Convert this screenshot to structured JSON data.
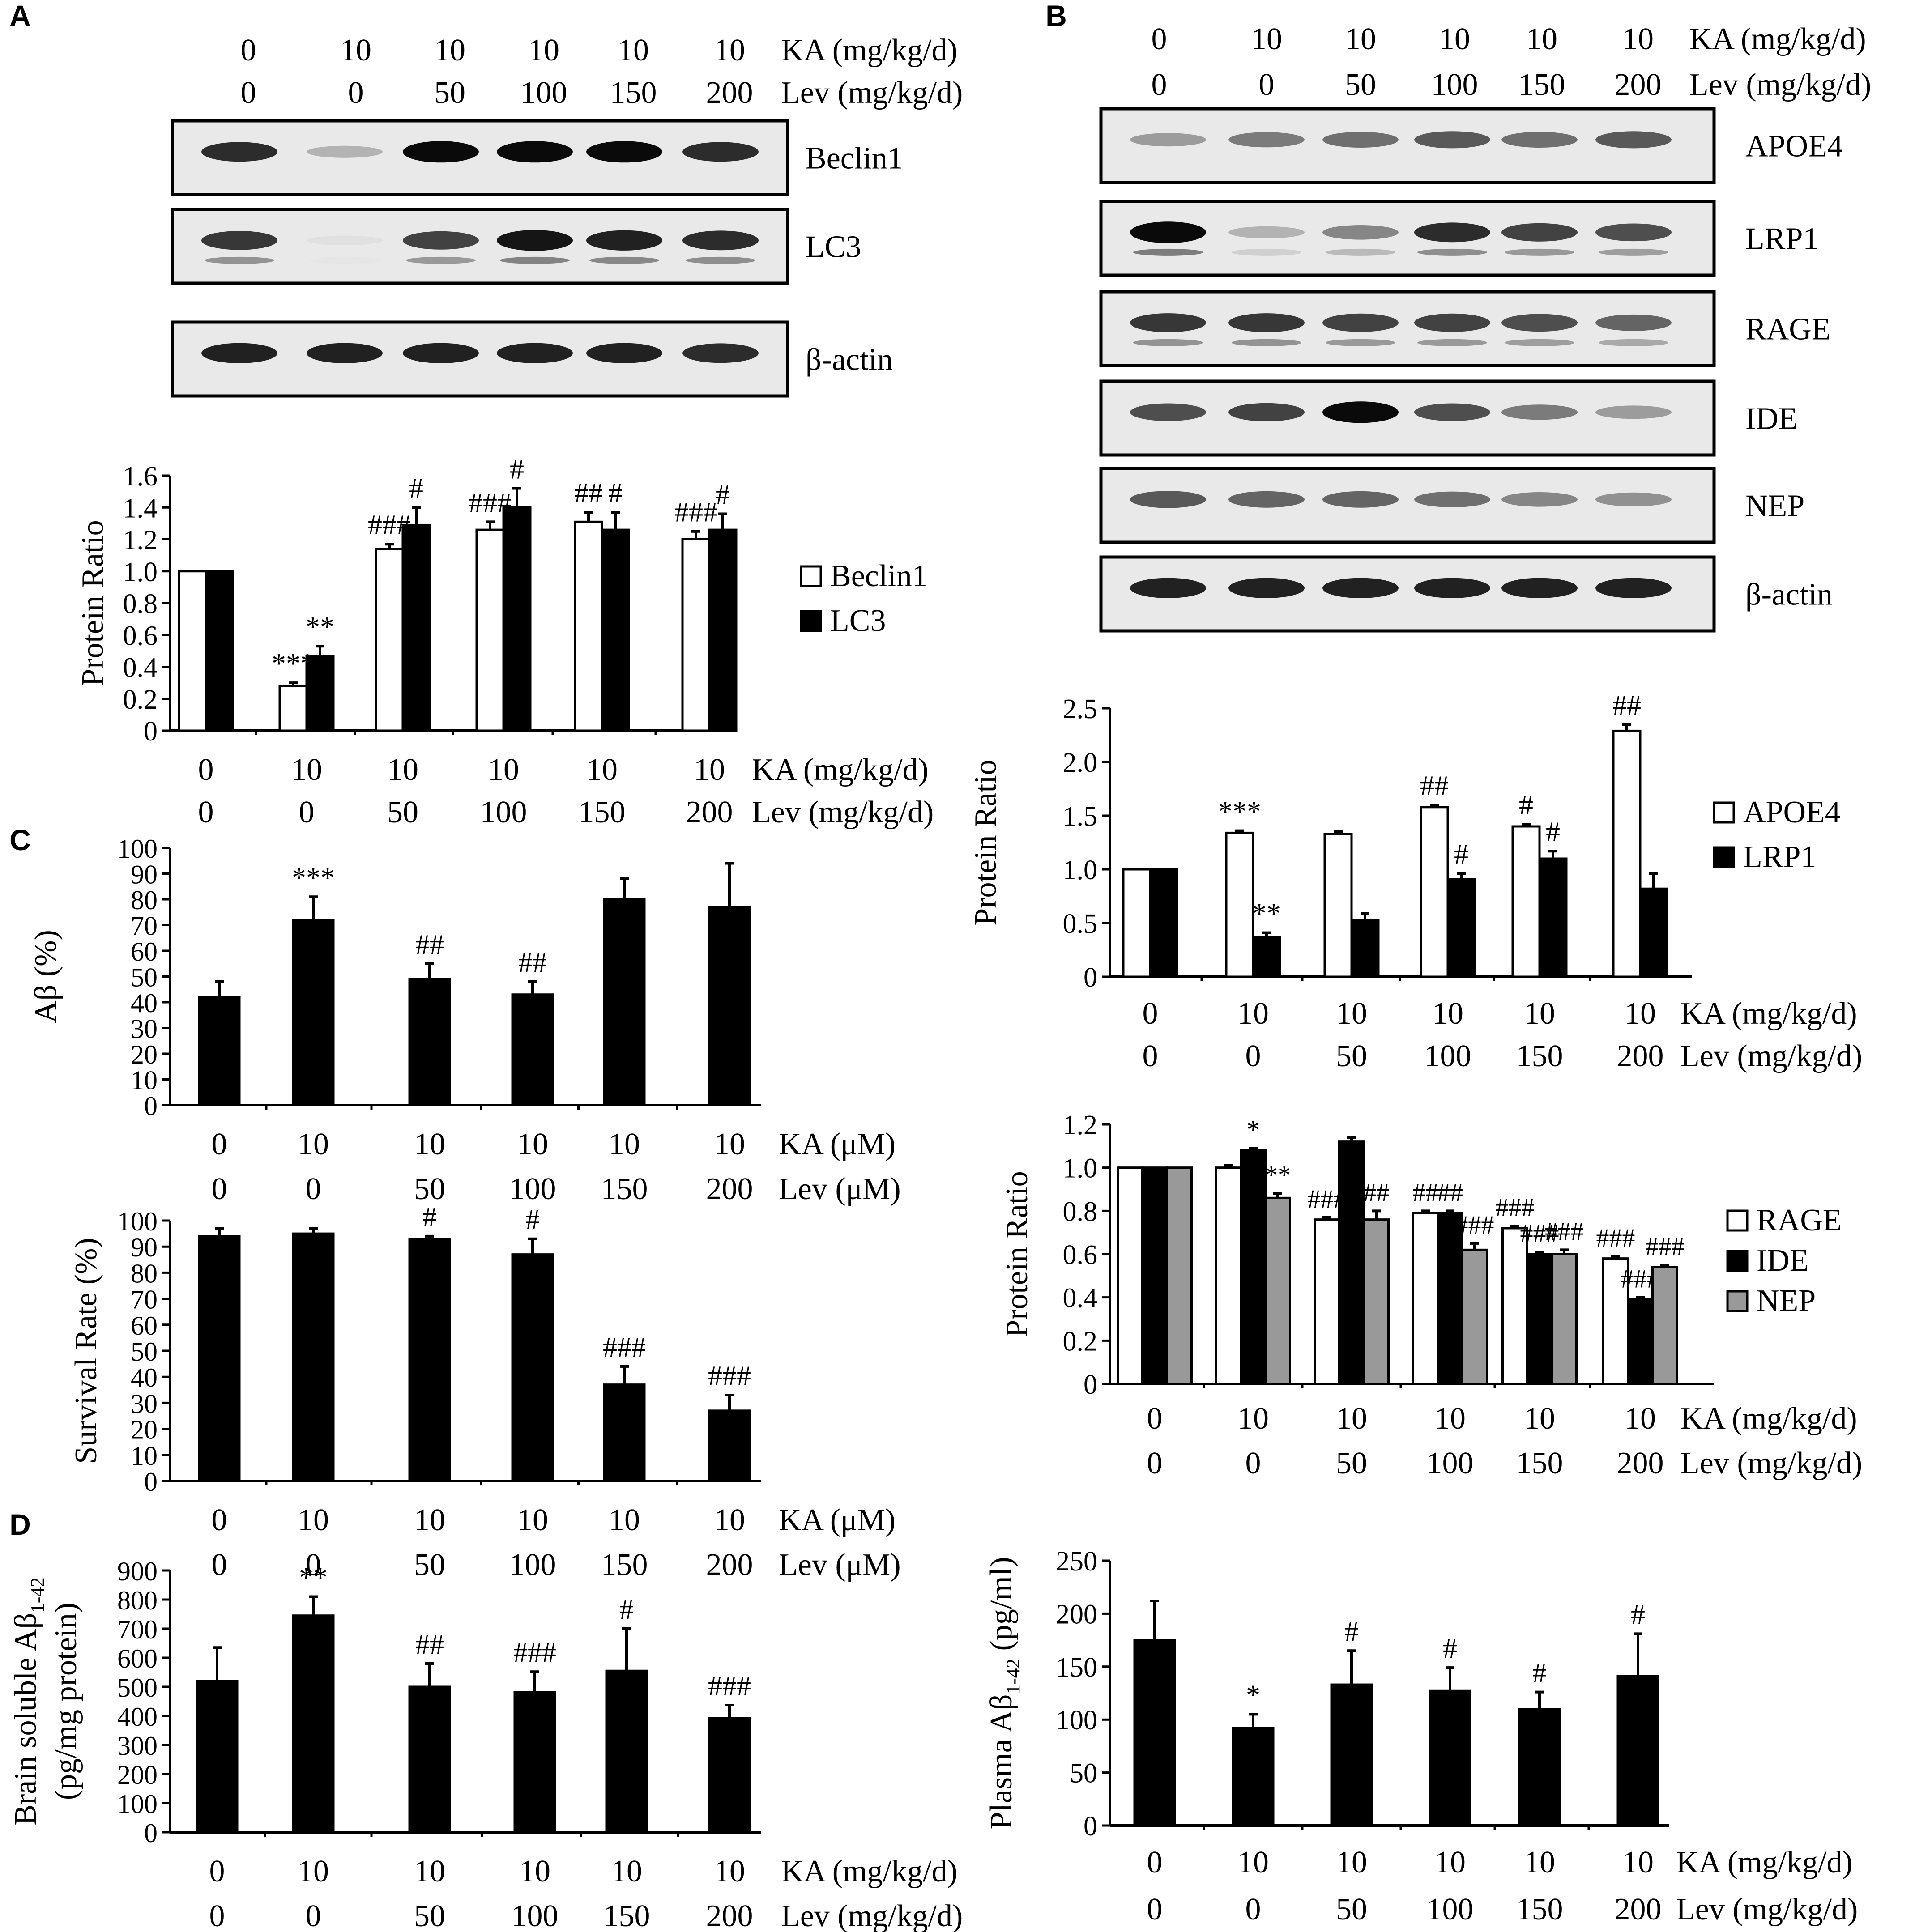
{
  "figure": {
    "panel_letters": [
      "A",
      "B",
      "C",
      "D"
    ],
    "treatment_labels": {
      "ka_mgkg": "KA (mg/kg/d)",
      "lev_mgkg": "Lev (mg/kg/d)",
      "ka_um": "KA (μM)",
      "lev_um": "Lev (μM)",
      "ka_values": [
        "0",
        "10",
        "10",
        "10",
        "10",
        "10"
      ],
      "lev_values": [
        "0",
        "0",
        "50",
        "100",
        "150",
        "200"
      ]
    }
  },
  "blots": [
    {
      "panel": "A",
      "rows": [
        {
          "label": "Beclin1",
          "intensities": [
            0.85,
            0.25,
            1.0,
            1.0,
            1.0,
            0.85
          ]
        },
        {
          "label": "LC3",
          "intensities": [
            0.8,
            0.05,
            0.75,
            0.95,
            0.9,
            0.85
          ],
          "lower_band": true
        },
        {
          "label": "β-actin",
          "intensities": [
            0.9,
            0.9,
            0.9,
            0.9,
            0.9,
            0.85
          ]
        }
      ]
    },
    {
      "panel": "B",
      "rows": [
        {
          "label": "APOE4",
          "intensities": [
            0.35,
            0.5,
            0.55,
            0.65,
            0.55,
            0.65
          ]
        },
        {
          "label": "LRP1",
          "intensities": [
            1.0,
            0.25,
            0.45,
            0.85,
            0.75,
            0.7
          ],
          "lower_band": true
        },
        {
          "label": "RAGE",
          "intensities": [
            0.8,
            0.8,
            0.75,
            0.75,
            0.7,
            0.6
          ],
          "lower_band": true
        },
        {
          "label": "IDE",
          "intensities": [
            0.7,
            0.75,
            1.0,
            0.7,
            0.5,
            0.35
          ]
        },
        {
          "label": "NEP",
          "intensities": [
            0.65,
            0.6,
            0.6,
            0.55,
            0.45,
            0.4
          ]
        },
        {
          "label": "β-actin",
          "intensities": [
            0.9,
            0.9,
            0.9,
            0.9,
            0.9,
            0.9
          ]
        }
      ]
    }
  ],
  "chart_data": [
    {
      "id": "A-bar",
      "type": "bar",
      "panel": "A",
      "ylabel": "Protein Ratio",
      "ylim": [
        0,
        1.6
      ],
      "yticks": [
        "0",
        "0.2",
        "0.4",
        "0.6",
        "0.8",
        "1.0",
        "1.2",
        "1.4",
        "1.6"
      ],
      "xlabel_rows": [
        {
          "values": [
            "0",
            "10",
            "10",
            "10",
            "10",
            "10"
          ],
          "label": "KA (mg/kg/d)"
        },
        {
          "values": [
            "0",
            "0",
            "50",
            "100",
            "150",
            "200"
          ],
          "label": "Lev (mg/kg/d)"
        }
      ],
      "legend_position": "right",
      "series": [
        {
          "name": "Beclin1",
          "fill": "#ffffff",
          "values": [
            1.0,
            0.28,
            1.14,
            1.26,
            1.31,
            1.2
          ],
          "errors": [
            0,
            0.02,
            0.03,
            0.05,
            0.06,
            0.05
          ],
          "annotations": [
            "",
            "***",
            "###",
            "###",
            "##",
            "###"
          ]
        },
        {
          "name": "LC3",
          "fill": "#000000",
          "values": [
            1.0,
            0.47,
            1.29,
            1.4,
            1.26,
            1.26
          ],
          "errors": [
            0,
            0.06,
            0.11,
            0.12,
            0.11,
            0.1
          ],
          "annotations": [
            "",
            "**",
            "#",
            "#",
            "#",
            "#"
          ]
        }
      ]
    },
    {
      "id": "B-apoe",
      "type": "bar",
      "panel": "B",
      "ylabel": "Protein Ratio",
      "ylim": [
        0,
        2.5
      ],
      "yticks": [
        "0",
        "0.5",
        "1.0",
        "1.5",
        "2.0",
        "2.5"
      ],
      "xlabel_rows": [
        {
          "values": [
            "0",
            "10",
            "10",
            "10",
            "10",
            "10"
          ],
          "label": "KA (mg/kg/d)"
        },
        {
          "values": [
            "0",
            "0",
            "50",
            "100",
            "150",
            "200"
          ],
          "label": "Lev (mg/kg/d)"
        }
      ],
      "legend_position": "right",
      "series": [
        {
          "name": "APOE4",
          "fill": "#ffffff",
          "values": [
            1.0,
            1.34,
            1.33,
            1.58,
            1.4,
            2.29
          ],
          "errors": [
            0,
            0.02,
            0.02,
            0.02,
            0.02,
            0.06
          ],
          "annotations": [
            "",
            "***",
            "",
            "##",
            "#",
            "##"
          ]
        },
        {
          "name": "LRP1",
          "fill": "#000000",
          "values": [
            1.0,
            0.37,
            0.53,
            0.91,
            1.1,
            0.82
          ],
          "errors": [
            0,
            0.04,
            0.06,
            0.05,
            0.07,
            0.14
          ],
          "annotations": [
            "",
            "**",
            "",
            "#",
            "#",
            ""
          ]
        }
      ]
    },
    {
      "id": "B-rage",
      "type": "bar",
      "panel": "B",
      "ylabel": "Protein Ratio",
      "ylim": [
        0,
        1.2
      ],
      "yticks": [
        "0",
        "0.2",
        "0.4",
        "0.6",
        "0.8",
        "1.0",
        "1.2"
      ],
      "xlabel_rows": [
        {
          "values": [
            "0",
            "10",
            "10",
            "10",
            "10",
            "10"
          ],
          "label": "KA (mg/kg/d)"
        },
        {
          "values": [
            "0",
            "0",
            "50",
            "100",
            "150",
            "200"
          ],
          "label": "Lev (mg/kg/d)"
        }
      ],
      "legend_position": "right",
      "series": [
        {
          "name": "RAGE",
          "fill": "#ffffff",
          "values": [
            1.0,
            1.0,
            0.76,
            0.79,
            0.72,
            0.58
          ],
          "errors": [
            0,
            0.01,
            0.01,
            0.01,
            0.01,
            0.01
          ],
          "annotations": [
            "",
            "",
            "###",
            "##",
            "###",
            "###"
          ]
        },
        {
          "name": "IDE",
          "fill": "#000000",
          "values": [
            1.0,
            1.08,
            1.12,
            0.79,
            0.6,
            0.39
          ],
          "errors": [
            0,
            0.01,
            0.02,
            0.01,
            0.01,
            0.01
          ],
          "annotations": [
            "",
            "*",
            "",
            "##",
            "###",
            "###"
          ]
        },
        {
          "name": "NEP",
          "fill": "#999999",
          "values": [
            1.0,
            0.86,
            0.76,
            0.62,
            0.6,
            0.54
          ],
          "errors": [
            0,
            0.02,
            0.04,
            0.03,
            0.02,
            0.01
          ],
          "annotations": [
            "",
            "**",
            "##",
            "###",
            "###",
            "###"
          ]
        }
      ]
    },
    {
      "id": "C-abeta",
      "type": "bar",
      "panel": "C",
      "ylabel": "Aβ (%)",
      "ylim": [
        0,
        100
      ],
      "yticks": [
        "0",
        "10",
        "20",
        "30",
        "40",
        "50",
        "60",
        "70",
        "80",
        "90",
        "100"
      ],
      "xlabel_rows": [
        {
          "values": [
            "0",
            "10",
            "10",
            "10",
            "10",
            "10"
          ],
          "label": "KA (μM)"
        },
        {
          "values": [
            "0",
            "0",
            "50",
            "100",
            "150",
            "200"
          ],
          "label": "Lev (μM)"
        }
      ],
      "series": [
        {
          "name": "",
          "fill": "#000000",
          "values": [
            42,
            72,
            49,
            43,
            80,
            77
          ],
          "errors": [
            6,
            9,
            6,
            5,
            8,
            17
          ],
          "annotations": [
            "",
            "***",
            "##",
            "##",
            "",
            ""
          ]
        }
      ]
    },
    {
      "id": "C-survival",
      "type": "bar",
      "panel": "C",
      "ylabel": "Survival Rate (%)",
      "ylim": [
        0,
        100
      ],
      "yticks": [
        "0",
        "10",
        "20",
        "30",
        "40",
        "50",
        "60",
        "70",
        "80",
        "90",
        "100"
      ],
      "xlabel_rows": [
        {
          "values": [
            "0",
            "10",
            "10",
            "10",
            "10",
            "10"
          ],
          "label": "KA (μM)"
        },
        {
          "values": [
            "0",
            "0",
            "50",
            "100",
            "150",
            "200"
          ],
          "label": "Lev (μM)"
        }
      ],
      "series": [
        {
          "name": "",
          "fill": "#000000",
          "values": [
            94,
            95,
            93,
            87,
            37,
            27
          ],
          "errors": [
            3,
            2,
            1,
            6,
            7,
            6
          ],
          "annotations": [
            "",
            "",
            "#",
            "#",
            "###",
            "###"
          ]
        }
      ]
    },
    {
      "id": "D-brain",
      "type": "bar",
      "panel": "D",
      "ylabel": "Brain soluble Aβ1-42 (pg/mg protein)",
      "ylabel_lines": [
        "Brain soluble Aβ",
        "1-42",
        "(pg/mg protein)"
      ],
      "ylim": [
        0,
        900
      ],
      "yticks": [
        "0",
        "100",
        "200",
        "300",
        "400",
        "500",
        "600",
        "700",
        "800",
        "900"
      ],
      "xlabel_rows": [
        {
          "values": [
            "0",
            "10",
            "10",
            "10",
            "10",
            "10"
          ],
          "label": "KA (mg/kg/d)"
        },
        {
          "values": [
            "0",
            "0",
            "50",
            "100",
            "150",
            "200"
          ],
          "label": "Lev (mg/kg/d)"
        }
      ],
      "series": [
        {
          "name": "",
          "fill": "#000000",
          "values": [
            520,
            745,
            500,
            482,
            555,
            392
          ],
          "errors": [
            115,
            65,
            80,
            70,
            145,
            45
          ],
          "annotations": [
            "",
            "**",
            "##",
            "###",
            "#",
            "###"
          ]
        }
      ]
    },
    {
      "id": "D-plasma",
      "type": "bar",
      "panel": "D",
      "ylabel": "Plasma Aβ1-42 (pg/ml)",
      "ylabel_lines": [
        "Plasma Aβ",
        "1-42",
        " (pg/ml)"
      ],
      "ylim": [
        0,
        250
      ],
      "yticks": [
        "0",
        "50",
        "100",
        "150",
        "200",
        "250"
      ],
      "xlabel_rows": [
        {
          "values": [
            "0",
            "10",
            "10",
            "10",
            "10",
            "10"
          ],
          "label": "KA (mg/kg/d)"
        },
        {
          "values": [
            "0",
            "0",
            "50",
            "100",
            "150",
            "200"
          ],
          "label": "Lev (mg/kg/d)"
        }
      ],
      "series": [
        {
          "name": "",
          "fill": "#000000",
          "values": [
            175,
            92,
            133,
            127,
            110,
            141
          ],
          "errors": [
            37,
            13,
            32,
            22,
            16,
            40
          ],
          "annotations": [
            "",
            "*",
            "#",
            "#",
            "#",
            "#"
          ]
        }
      ]
    }
  ]
}
